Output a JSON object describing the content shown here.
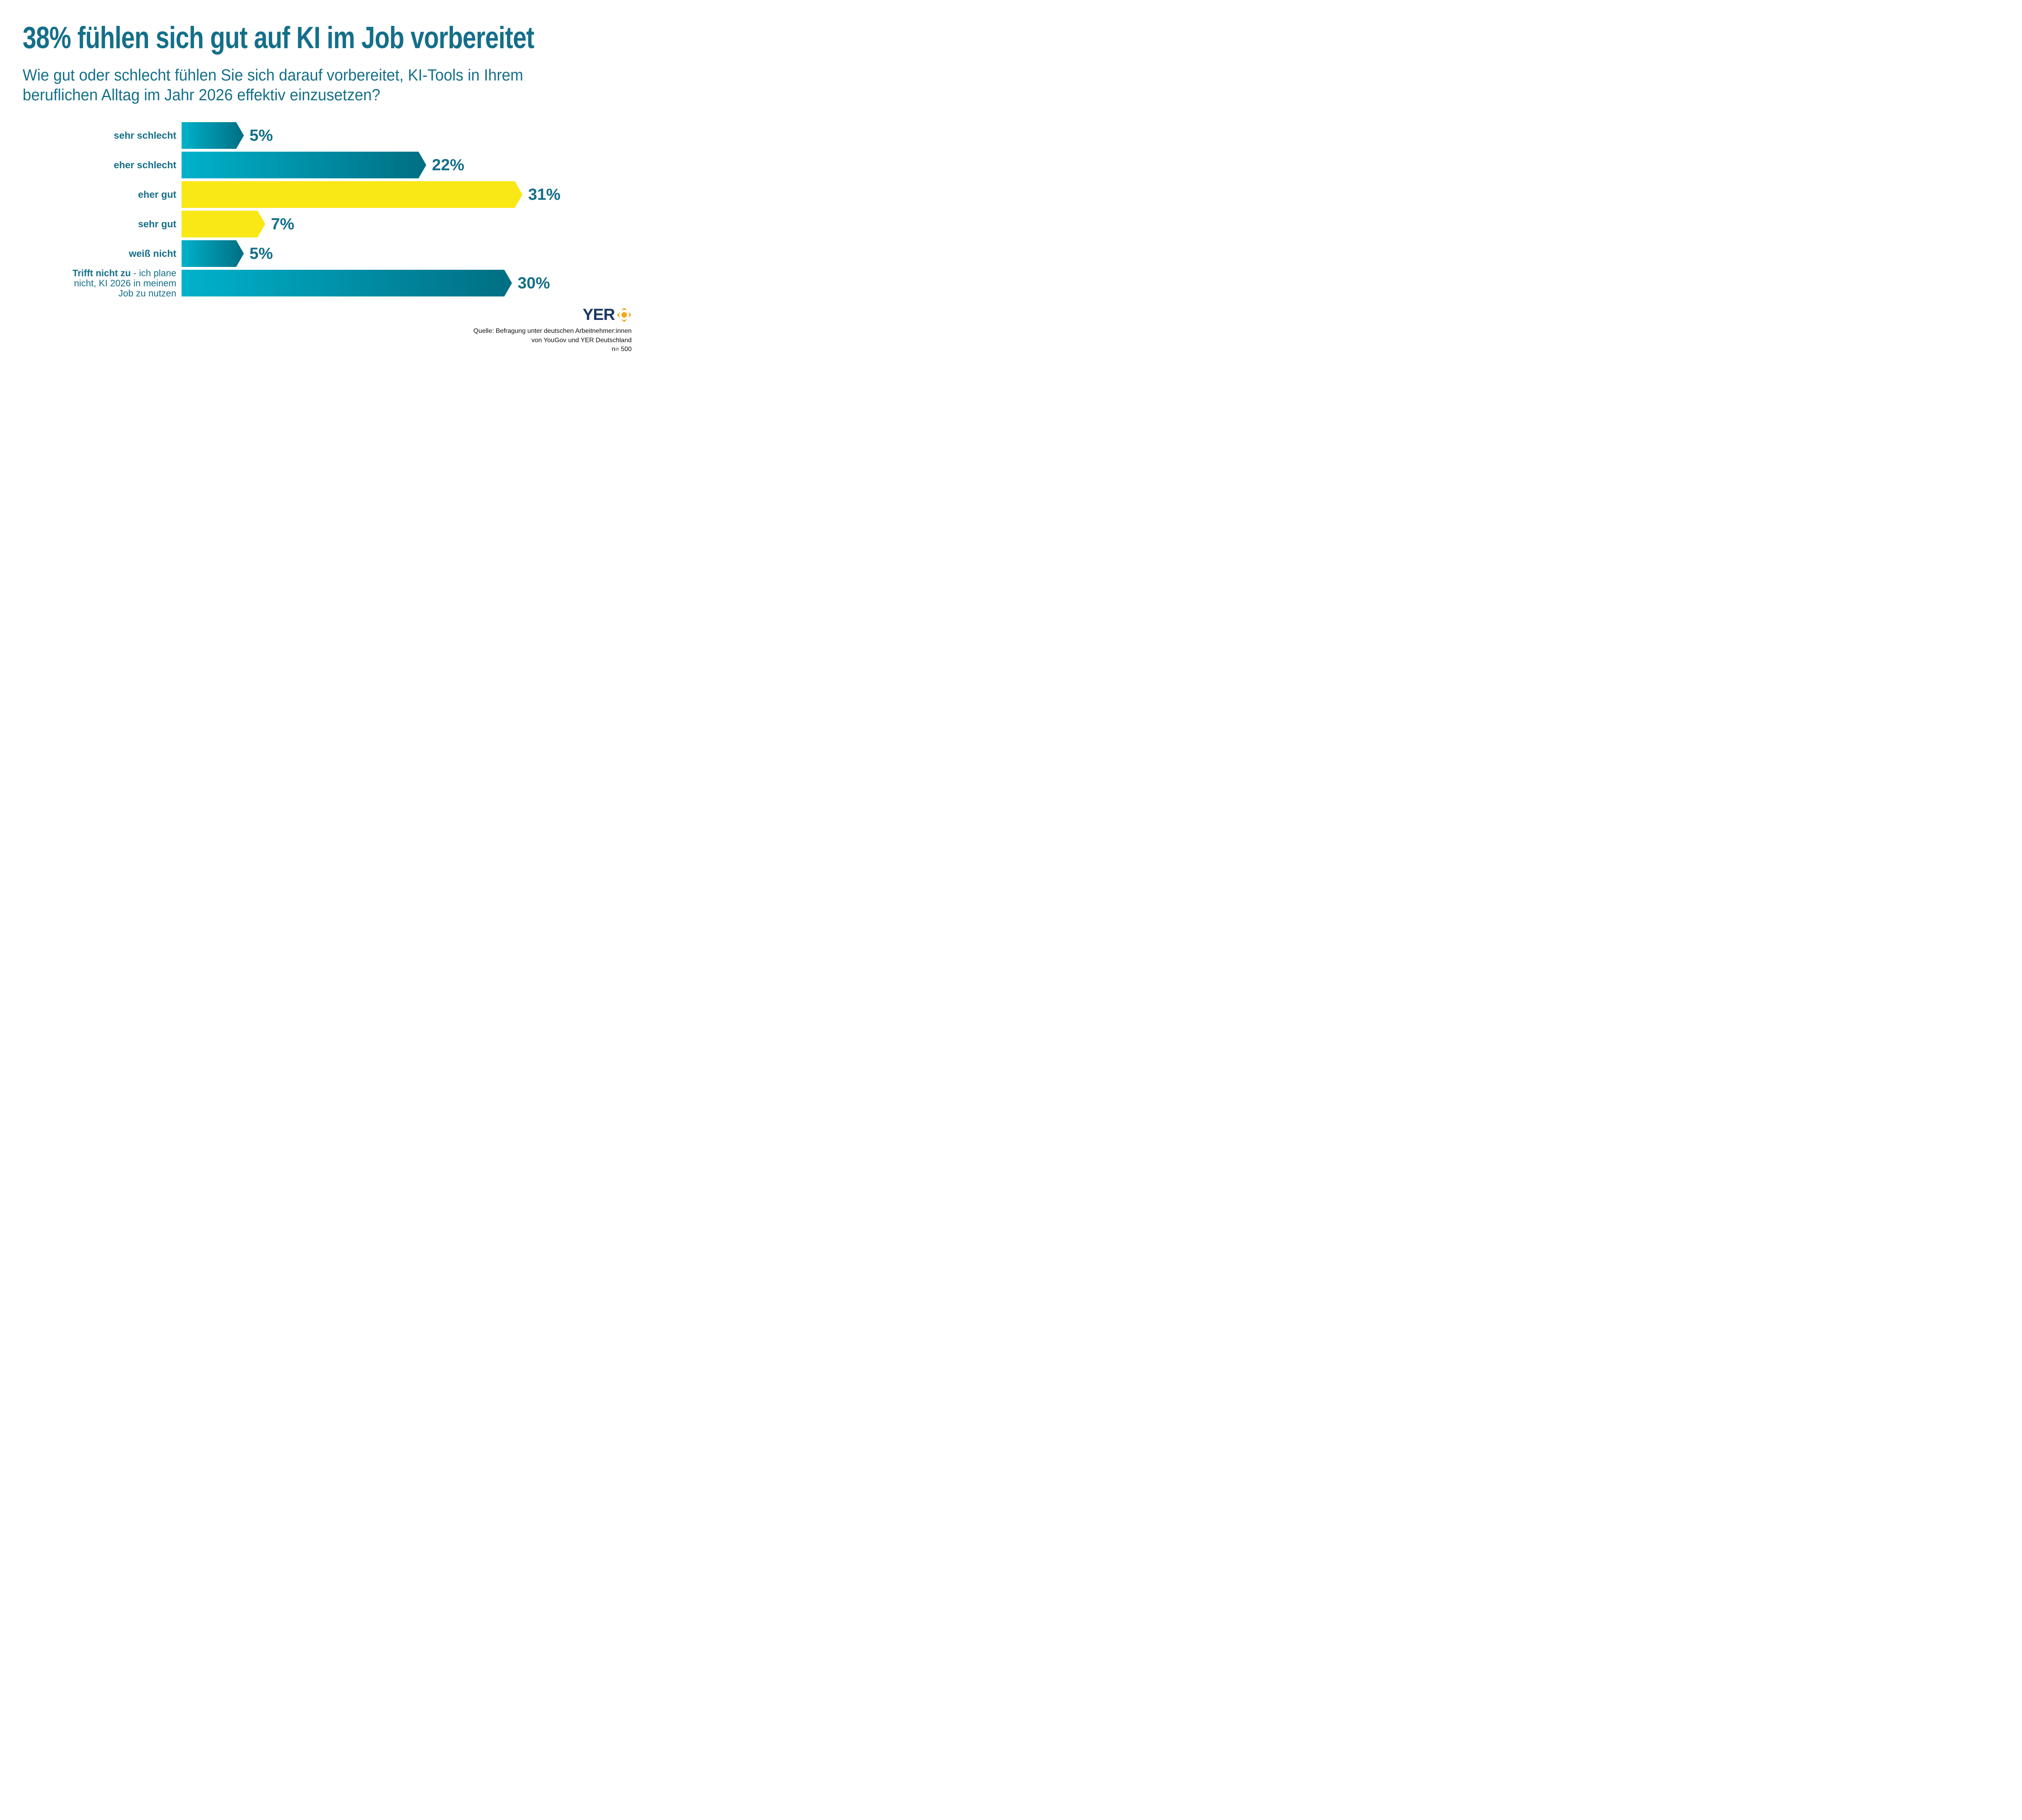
{
  "header": {
    "title": "38% fühlen sich gut auf KI im Job vorbereitet",
    "subtitle_lines": [
      "Wie gut oder schlecht fühlen Sie sich darauf vorbereitet, KI-Tools in Ihrem",
      "beruflichen Alltag im Jahr 2026 effektiv einzusetzen?"
    ]
  },
  "chart_data": {
    "type": "bar",
    "orientation": "horizontal",
    "unit": "%",
    "title": "38% fühlen sich gut auf KI im Job vorbereitet",
    "xlabel": "",
    "ylabel": "",
    "xlim": [
      0,
      31
    ],
    "grid": false,
    "legend": false,
    "categories": [
      "sehr schlecht",
      "eher schlecht",
      "eher gut",
      "sehr gut",
      "weiß nicht",
      "Trifft nicht zu - ich plane nicht, KI 2026 in meinem Job zu nutzen"
    ],
    "values": [
      5,
      22,
      31,
      7,
      5,
      30
    ],
    "rows": [
      {
        "label_lines": [
          {
            "bold": "sehr schlecht",
            "text": ""
          }
        ],
        "value": 5,
        "value_label": "5%",
        "color": "teal"
      },
      {
        "label_lines": [
          {
            "bold": "eher schlecht",
            "text": ""
          }
        ],
        "value": 22,
        "value_label": "22%",
        "color": "teal"
      },
      {
        "label_lines": [
          {
            "bold": "eher gut",
            "text": ""
          }
        ],
        "value": 31,
        "value_label": "31%",
        "color": "yellow"
      },
      {
        "label_lines": [
          {
            "bold": "sehr gut",
            "text": ""
          }
        ],
        "value": 7,
        "value_label": "7%",
        "color": "yellow"
      },
      {
        "label_lines": [
          {
            "bold": "weiß nicht",
            "text": ""
          }
        ],
        "value": 5,
        "value_label": "5%",
        "color": "teal"
      },
      {
        "label_lines": [
          {
            "bold": "Trifft nicht zu",
            "text": " - ich plane"
          },
          {
            "bold": "",
            "text": "nicht, KI 2026 in meinem"
          },
          {
            "bold": "",
            "text": "Job zu nutzen"
          }
        ],
        "value": 30,
        "value_label": "30%",
        "color": "teal"
      }
    ]
  },
  "footer": {
    "logo_text": "YER",
    "logo_icon": "compass-sun-icon",
    "source_lines": [
      "Quelle: Befragung unter deutschen Arbeitnehmer:innen",
      "von YouGov und YER Deutschland",
      "n= 500"
    ]
  },
  "colors": {
    "background": "#FFFFFF",
    "accent_teal_dark": "#146F89",
    "bar_teal_gradient_start": "#00B2CB",
    "bar_teal_gradient_end": "#006E83",
    "bar_yellow": "#FAE816",
    "logo_navy": "#1B3764",
    "logo_gold": "#F2A71B",
    "source_text": "#111111"
  }
}
